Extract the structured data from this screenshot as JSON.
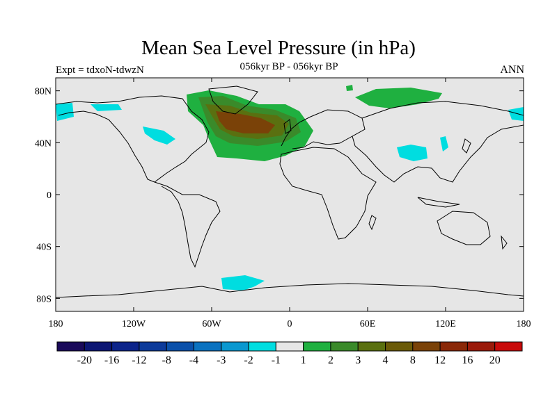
{
  "title": "Mean Sea Level Pressure (in hPa)",
  "subtitle_left": "Expt = tdxoN-tdwzN",
  "subtitle_center": "056kyr BP - 056kyr BP",
  "subtitle_right": "ANN",
  "map": {
    "lon_range": [
      -180,
      180
    ],
    "lat_range": [
      -90,
      90
    ],
    "x_ticks": [
      {
        "lon": -180,
        "label": "180"
      },
      {
        "lon": -120,
        "label": "120W"
      },
      {
        "lon": -60,
        "label": "60W"
      },
      {
        "lon": 0,
        "label": "0"
      },
      {
        "lon": 60,
        "label": "60E"
      },
      {
        "lon": 120,
        "label": "120E"
      },
      {
        "lon": 180,
        "label": "180"
      }
    ],
    "y_ticks": [
      {
        "lat": 80,
        "label": "80N"
      },
      {
        "lat": 40,
        "label": "40N"
      },
      {
        "lat": 0,
        "label": "0"
      },
      {
        "lat": -40,
        "label": "40S"
      },
      {
        "lat": -80,
        "label": "80S"
      }
    ],
    "colors": {
      "land_ocean_background": "#e6e6e6",
      "coastline": "#000000"
    }
  },
  "colorbar": {
    "colors": [
      "#1a0a5a",
      "#0c1673",
      "#0c248a",
      "#0c3a9a",
      "#0a50aa",
      "#0a72c0",
      "#0a98d0",
      "#00dde0",
      "#e6e6e6",
      "#1fb040",
      "#3a8a2a",
      "#5a7010",
      "#6a5a08",
      "#7a4208",
      "#8a2808",
      "#9a1a0a",
      "#c80a0a"
    ],
    "labels": [
      "-20",
      "-16",
      "-12",
      "-8",
      "-4",
      "-3",
      "-2",
      "-1",
      "1",
      "2",
      "3",
      "4",
      "8",
      "12",
      "16",
      "20"
    ]
  }
}
